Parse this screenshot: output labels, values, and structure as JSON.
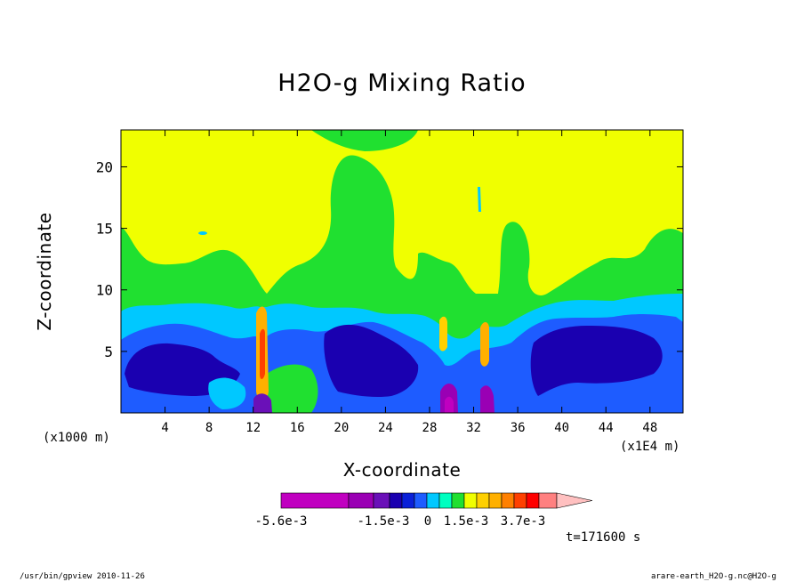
{
  "chart_data": {
    "type": "heatmap",
    "title": "H2O-g Mixing Ratio",
    "xlabel": "X-coordinate",
    "ylabel": "Z-coordinate",
    "x_unit_left": "(x1000 m)",
    "x_unit_right": "(x1E4 m)",
    "xlim": [
      0,
      51
    ],
    "ylim": [
      0,
      23
    ],
    "x_ticks": [
      4,
      8,
      12,
      16,
      20,
      24,
      28,
      32,
      36,
      40,
      44,
      48
    ],
    "y_ticks": [
      5,
      10,
      15,
      20
    ],
    "colorbar": {
      "colors": [
        "#c000c0",
        "#9a00b4",
        "#6a10b8",
        "#1a00b0",
        "#0a20d8",
        "#1e5cff",
        "#00c8ff",
        "#00ffc0",
        "#20e030",
        "#f0ff00",
        "#ffd000",
        "#ffb000",
        "#ff8000",
        "#ff4000",
        "#ff0000",
        "#ff8080",
        "#ffc0c0"
      ],
      "labels": [
        "-5.6e-3",
        "-1.5e-3",
        "0",
        "1.5e-3",
        "3.7e-3"
      ]
    },
    "time_label": "t=171600 s"
  },
  "footer": {
    "left": "/usr/bin/gpview  2010-11-26",
    "right": "arare-earth_H2O-g.nc@H2O-g"
  }
}
